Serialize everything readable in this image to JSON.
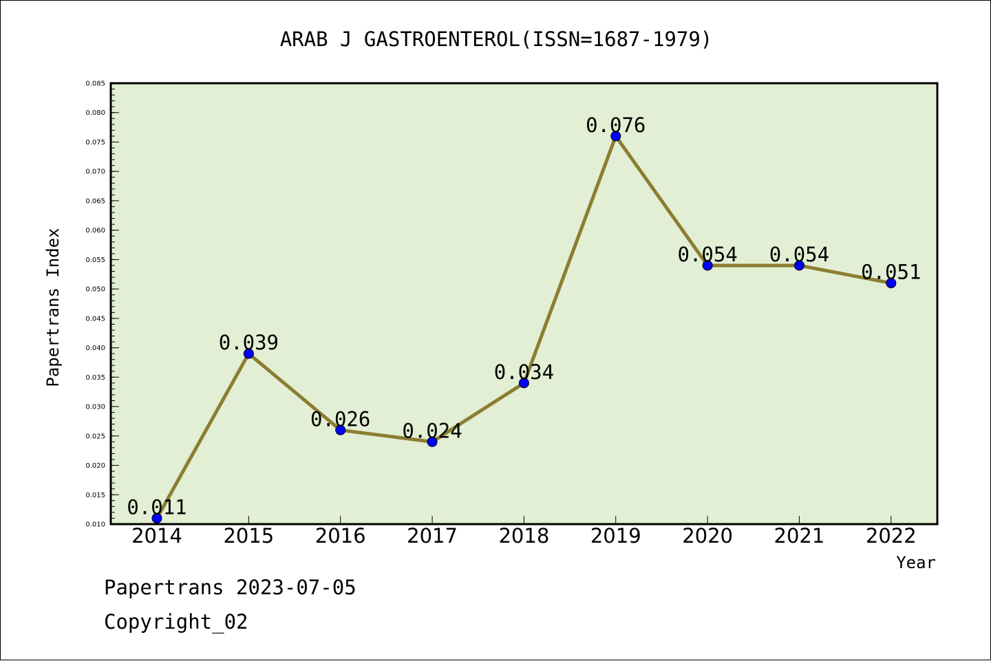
{
  "chart_data": {
    "type": "line",
    "title": "ARAB J GASTROENTEROL(ISSN=1687-1979)",
    "xlabel": "Year",
    "ylabel": "Papertrans Index",
    "categories": [
      "2014",
      "2015",
      "2016",
      "2017",
      "2018",
      "2019",
      "2020",
      "2021",
      "2022"
    ],
    "series": [
      {
        "values": [
          0.011,
          0.039,
          0.026,
          0.024,
          0.034,
          0.076,
          0.054,
          0.054,
          0.051
        ],
        "labels": [
          "0.011",
          "0.039",
          "0.026",
          "0.024",
          "0.034",
          "0.076",
          "0.054",
          "0.054",
          "0.051"
        ]
      }
    ],
    "ylim": [
      0.01,
      0.085
    ],
    "yticks": [
      "0.010",
      "0.015",
      "0.020",
      "0.025",
      "0.030",
      "0.035",
      "0.040",
      "0.045",
      "0.050",
      "0.055",
      "0.060",
      "0.065",
      "0.070",
      "0.075",
      "0.080",
      "0.085"
    ],
    "grid": false,
    "colors": {
      "plot_background": "#e2efd4",
      "line": "#8b7d32",
      "marker": "#0000ff"
    }
  },
  "footer": {
    "source_line": "Papertrans 2023-07-05",
    "copyright": "Copyright_02"
  }
}
